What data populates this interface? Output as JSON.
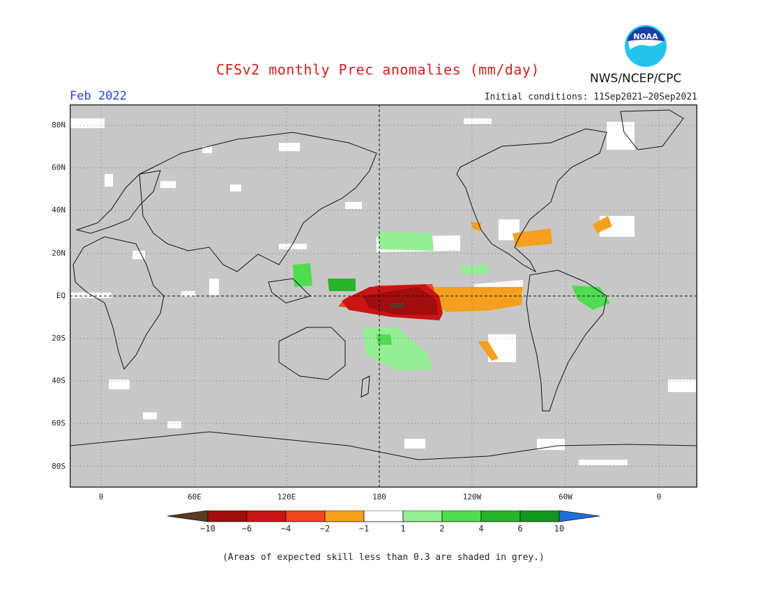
{
  "header": {
    "title": "CFSv2 monthly Prec anomalies (mm/day)",
    "agency": "NWS/NCEP/CPC",
    "logo_text": "NOAA",
    "month": "Feb 2022",
    "initial_conditions": "Initial conditions: 11Sep2021–20Sep2021"
  },
  "map": {
    "projection": "equirectangular",
    "lon_range": [
      "20W",
      "380E"
    ],
    "lat_range": [
      "90S",
      "90N"
    ],
    "background_color": "#c8c8c8",
    "reference_lines": [
      "EQ",
      "180"
    ],
    "lat_labels": [
      "80N",
      "60N",
      "40N",
      "20N",
      "EQ",
      "20S",
      "40S",
      "60S",
      "80S"
    ],
    "lon_labels": [
      "0",
      "60E",
      "120E",
      "180",
      "120W",
      "60W",
      "0"
    ]
  },
  "colorbar": {
    "ticks": [
      "−10",
      "−6",
      "−4",
      "−2",
      "−1",
      "1",
      "2",
      "4",
      "6",
      "10"
    ],
    "colors": [
      "#5c3a1e",
      "#a10c0c",
      "#c81414",
      "#f0461e",
      "#f5a01e",
      "#ffffff",
      "#96ee96",
      "#50dc50",
      "#28b428",
      "#14961e",
      "#1e6edc"
    ]
  },
  "footnote": "(Areas of expected skill less than 0.3 are shaded in grey.)"
}
